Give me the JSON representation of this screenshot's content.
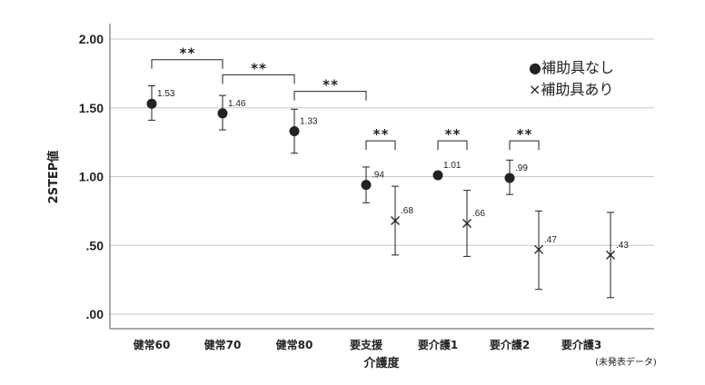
{
  "chart_data": {
    "type": "scatter",
    "xlabel": "介護度",
    "ylabel": "2STEP値",
    "ylim": [
      0.0,
      2.0
    ],
    "yticks": [
      ".00",
      ".50",
      "1.00",
      "1.50",
      "2.00"
    ],
    "ytick_values": [
      0.0,
      0.5,
      1.0,
      1.5,
      2.0
    ],
    "grid": true,
    "categories": [
      "健常60",
      "健常70",
      "健常80",
      "要支援",
      "要介護1",
      "要介護2",
      "要介護3"
    ],
    "series": [
      {
        "name": "補助具なし",
        "marker": "filled-circle",
        "points": [
          {
            "category": "健常60",
            "y": 1.53,
            "label": "1.53",
            "ci": [
              1.41,
              1.66
            ]
          },
          {
            "category": "健常70",
            "y": 1.46,
            "label": "1.46",
            "ci": [
              1.34,
              1.59
            ]
          },
          {
            "category": "健常80",
            "y": 1.33,
            "label": "1.33",
            "ci": [
              1.17,
              1.49
            ]
          },
          {
            "category": "要支援",
            "y": 0.94,
            "label": ".94",
            "ci": [
              0.81,
              1.07
            ]
          },
          {
            "category": "要介護1",
            "y": 1.01,
            "label": "1.01",
            "ci": [
              1.0,
              1.02
            ]
          },
          {
            "category": "要介護2",
            "y": 0.99,
            "label": ".99",
            "ci": [
              0.87,
              1.12
            ]
          }
        ]
      },
      {
        "name": "補助具あり",
        "marker": "x",
        "points": [
          {
            "category": "要支援",
            "y": 0.68,
            "label": ".68",
            "ci": [
              0.43,
              0.93
            ]
          },
          {
            "category": "要介護1",
            "y": 0.66,
            "label": ".66",
            "ci": [
              0.42,
              0.9
            ]
          },
          {
            "category": "要介護2",
            "y": 0.47,
            "label": ".47",
            "ci": [
              0.18,
              0.75
            ]
          },
          {
            "category": "要介護3",
            "y": 0.43,
            "label": ".43",
            "ci": [
              0.12,
              0.74
            ]
          }
        ]
      }
    ],
    "significance": [
      {
        "from": "健常60",
        "to": "健常70",
        "label": "**",
        "y": 1.85
      },
      {
        "from": "健常70",
        "to": "健常80",
        "label": "**",
        "y": 1.74
      },
      {
        "from": "健常80",
        "to": "要支援",
        "label": "**",
        "y": 1.62
      },
      {
        "pair": "要支援",
        "label": "**",
        "y": 1.26
      },
      {
        "pair": "要介護1",
        "label": "**",
        "y": 1.26
      },
      {
        "pair": "要介護2",
        "label": "**",
        "y": 1.26
      }
    ],
    "legend": {
      "placement": "top-right",
      "items": [
        "●補助具なし",
        "×補助具あり"
      ]
    },
    "note": "(未発表データ)",
    "colors": {
      "marker": "#222222",
      "grid": "#c8c8c8",
      "axis": "#555555"
    }
  }
}
